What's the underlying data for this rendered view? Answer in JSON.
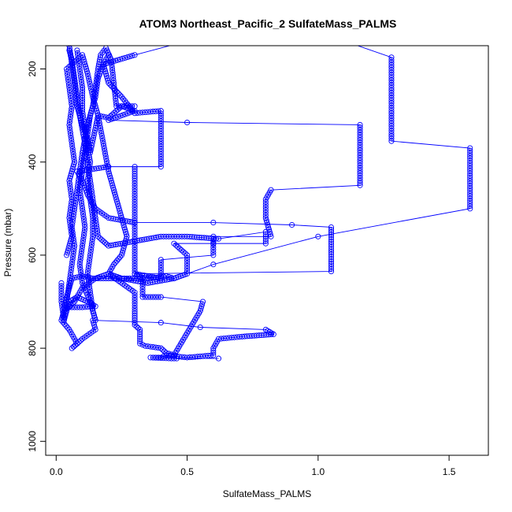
{
  "chart_data": {
    "type": "line",
    "title": "ATOM3 Northeast_Pacific_2 SulfateMass_PALMS",
    "xlabel": "SulfateMass_PALMS",
    "ylabel": "Pressure (mbar)",
    "xlim": [
      -0.04,
      1.65
    ],
    "ylim": [
      1030,
      150
    ],
    "y_reversed": true,
    "grid": false,
    "marker": "open-circle",
    "color": "#0000ff",
    "xticks": [
      0.0,
      0.5,
      1.0,
      1.5
    ],
    "xtick_labels": [
      "0.0",
      "0.5",
      "1.0",
      "1.5"
    ],
    "yticks": [
      200,
      400,
      600,
      800,
      1000
    ],
    "ytick_labels": [
      "200",
      "400",
      "600",
      "800",
      "1000"
    ],
    "series": [
      {
        "points": [
          [
            0.05,
            150
          ],
          [
            0.06,
            190
          ],
          [
            0.07,
            230
          ],
          [
            0.08,
            280
          ],
          [
            0.1,
            320
          ],
          [
            0.12,
            350
          ],
          [
            0.13,
            380
          ],
          [
            0.16,
            300
          ],
          [
            0.2,
            305
          ],
          [
            0.25,
            280
          ],
          [
            0.3,
            290
          ],
          [
            0.2,
            310
          ],
          [
            0.5,
            315
          ],
          [
            1.16,
            320
          ],
          [
            1.16,
            440
          ],
          [
            1.16,
            450
          ],
          [
            0.82,
            460
          ],
          [
            0.8,
            480
          ],
          [
            0.8,
            520
          ],
          [
            0.82,
            560
          ],
          [
            0.6,
            560
          ],
          [
            0.6,
            600
          ],
          [
            0.4,
            610
          ],
          [
            0.4,
            650
          ],
          [
            0.3,
            640
          ],
          [
            1.05,
            635
          ],
          [
            1.05,
            540
          ],
          [
            0.9,
            535
          ],
          [
            0.6,
            530
          ],
          [
            0.3,
            530
          ],
          [
            0.2,
            520
          ],
          [
            0.15,
            500
          ],
          [
            0.12,
            470
          ],
          [
            0.1,
            440
          ],
          [
            0.08,
            420
          ],
          [
            0.2,
            410
          ],
          [
            0.4,
            410
          ],
          [
            0.4,
            290
          ],
          [
            0.3,
            295
          ],
          [
            0.25,
            260
          ],
          [
            0.2,
            230
          ],
          [
            0.18,
            190
          ],
          [
            0.3,
            170
          ],
          [
            0.5,
            140
          ],
          [
            0.8,
            130
          ],
          [
            1.1,
            140
          ],
          [
            1.28,
            175
          ],
          [
            1.28,
            355
          ],
          [
            1.58,
            370
          ],
          [
            1.58,
            500
          ],
          [
            1.0,
            560
          ],
          [
            0.6,
            620
          ],
          [
            0.45,
            650
          ],
          [
            0.35,
            660
          ],
          [
            0.25,
            650
          ],
          [
            0.2,
            640
          ],
          [
            0.15,
            650
          ],
          [
            0.1,
            670
          ],
          [
            0.07,
            700
          ],
          [
            0.05,
            710
          ],
          [
            0.03,
            720
          ],
          [
            0.02,
            740
          ],
          [
            0.05,
            760
          ],
          [
            0.08,
            790
          ],
          [
            0.06,
            800
          ],
          [
            0.1,
            780
          ],
          [
            0.15,
            760
          ],
          [
            0.14,
            740
          ],
          [
            0.4,
            745
          ],
          [
            0.55,
            755
          ],
          [
            0.8,
            760
          ],
          [
            0.83,
            770
          ],
          [
            0.71,
            775
          ],
          [
            0.62,
            780
          ],
          [
            0.6,
            800
          ],
          [
            0.6,
            815
          ],
          [
            0.5,
            820
          ],
          [
            0.42,
            815
          ],
          [
            0.4,
            820
          ],
          [
            0.36,
            820
          ],
          [
            0.44,
            822
          ],
          [
            0.46,
            822
          ],
          [
            0.62,
            822
          ]
        ]
      },
      {
        "points": [
          [
            0.02,
            660
          ],
          [
            0.02,
            700
          ],
          [
            0.03,
            740
          ],
          [
            0.05,
            700
          ],
          [
            0.08,
            690
          ],
          [
            0.12,
            700
          ],
          [
            0.15,
            710
          ],
          [
            0.1,
            712
          ],
          [
            0.05,
            712
          ],
          [
            0.03,
            712
          ],
          [
            0.06,
            650
          ],
          [
            0.1,
            645
          ],
          [
            0.14,
            650
          ],
          [
            0.2,
            650
          ],
          [
            0.3,
            650
          ],
          [
            0.38,
            648
          ],
          [
            0.42,
            645
          ],
          [
            0.45,
            650
          ],
          [
            0.5,
            640
          ],
          [
            0.5,
            600
          ],
          [
            0.45,
            575
          ],
          [
            0.6,
            575
          ],
          [
            0.8,
            575
          ],
          [
            0.8,
            550
          ],
          [
            0.62,
            565
          ],
          [
            0.5,
            560
          ],
          [
            0.4,
            560
          ],
          [
            0.3,
            570
          ],
          [
            0.2,
            580
          ],
          [
            0.16,
            560
          ],
          [
            0.15,
            520
          ],
          [
            0.14,
            480
          ],
          [
            0.13,
            440
          ],
          [
            0.12,
            400
          ],
          [
            0.11,
            360
          ],
          [
            0.1,
            330
          ],
          [
            0.09,
            300
          ],
          [
            0.08,
            260
          ],
          [
            0.07,
            220
          ],
          [
            0.06,
            180
          ],
          [
            0.05,
            160
          ]
        ]
      },
      {
        "points": [
          [
            0.04,
            600
          ],
          [
            0.06,
            560
          ],
          [
            0.05,
            520
          ],
          [
            0.06,
            480
          ],
          [
            0.05,
            440
          ],
          [
            0.07,
            400
          ],
          [
            0.06,
            360
          ],
          [
            0.05,
            320
          ],
          [
            0.06,
            280
          ],
          [
            0.05,
            240
          ],
          [
            0.04,
            200
          ],
          [
            0.1,
            170
          ],
          [
            0.12,
            210
          ],
          [
            0.14,
            260
          ],
          [
            0.16,
            300
          ],
          [
            0.18,
            360
          ],
          [
            0.2,
            420
          ],
          [
            0.22,
            460
          ],
          [
            0.24,
            500
          ],
          [
            0.26,
            540
          ],
          [
            0.27,
            560
          ],
          [
            0.25,
            600
          ],
          [
            0.22,
            620
          ],
          [
            0.2,
            640
          ],
          [
            0.3,
            680
          ],
          [
            0.3,
            720
          ],
          [
            0.3,
            750
          ],
          [
            0.32,
            760
          ],
          [
            0.32,
            790
          ],
          [
            0.34,
            795
          ],
          [
            0.4,
            800
          ],
          [
            0.42,
            810
          ],
          [
            0.45,
            815
          ],
          [
            0.55,
            720
          ],
          [
            0.56,
            700
          ],
          [
            0.4,
            690
          ],
          [
            0.33,
            690
          ],
          [
            0.33,
            650
          ],
          [
            0.3,
            640
          ],
          [
            0.3,
            600
          ],
          [
            0.3,
            560
          ],
          [
            0.3,
            520
          ],
          [
            0.3,
            480
          ],
          [
            0.3,
            440
          ],
          [
            0.3,
            410
          ]
        ]
      },
      {
        "points": [
          [
            0.08,
            160
          ],
          [
            0.09,
            200
          ],
          [
            0.1,
            240
          ],
          [
            0.1,
            290
          ],
          [
            0.11,
            330
          ],
          [
            0.12,
            370
          ],
          [
            0.13,
            400
          ],
          [
            0.12,
            440
          ],
          [
            0.13,
            480
          ],
          [
            0.14,
            520
          ],
          [
            0.14,
            560
          ],
          [
            0.13,
            600
          ],
          [
            0.12,
            640
          ],
          [
            0.13,
            680
          ],
          [
            0.14,
            720
          ],
          [
            0.15,
            740
          ],
          [
            0.13,
            700
          ],
          [
            0.1,
            660
          ],
          [
            0.09,
            620
          ],
          [
            0.1,
            580
          ],
          [
            0.11,
            540
          ],
          [
            0.1,
            500
          ],
          [
            0.09,
            460
          ],
          [
            0.1,
            420
          ],
          [
            0.11,
            380
          ],
          [
            0.12,
            340
          ],
          [
            0.13,
            300
          ],
          [
            0.15,
            260
          ],
          [
            0.16,
            220
          ],
          [
            0.18,
            190
          ],
          [
            0.2,
            170
          ]
        ]
      },
      {
        "points": [
          [
            0.03,
            740
          ],
          [
            0.04,
            700
          ],
          [
            0.05,
            660
          ],
          [
            0.06,
            620
          ],
          [
            0.07,
            580
          ],
          [
            0.06,
            540
          ],
          [
            0.07,
            500
          ],
          [
            0.08,
            460
          ],
          [
            0.09,
            420
          ],
          [
            0.1,
            380
          ],
          [
            0.11,
            350
          ],
          [
            0.12,
            320
          ],
          [
            0.14,
            280
          ],
          [
            0.15,
            240
          ],
          [
            0.16,
            200
          ],
          [
            0.17,
            170
          ],
          [
            0.19,
            155
          ],
          [
            0.21,
            180
          ],
          [
            0.22,
            230
          ],
          [
            0.23,
            280
          ],
          [
            0.3,
            280
          ]
        ]
      }
    ]
  }
}
